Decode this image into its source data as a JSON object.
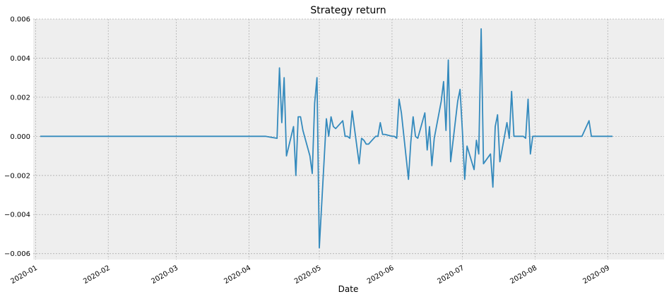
{
  "chart_data": {
    "type": "line",
    "title": "Strategy return",
    "xlabel": "Date",
    "ylabel": "",
    "grid": true,
    "xlim": [
      "2019-12-31",
      "2020-09-25"
    ],
    "ylim": [
      -0.0063,
      0.006
    ],
    "y_ticks": [
      -0.006,
      -0.004,
      -0.002,
      0.0,
      0.002,
      0.004,
      0.006
    ],
    "y_tick_labels": [
      "−0.006",
      "−0.004",
      "−0.002",
      "0.000",
      "0.002",
      "0.004",
      "0.006"
    ],
    "x_ticks": [
      "2020-01-01",
      "2020-02-01",
      "2020-03-01",
      "2020-04-01",
      "2020-05-01",
      "2020-06-01",
      "2020-07-01",
      "2020-08-01",
      "2020-09-01"
    ],
    "x_tick_labels": [
      "2020-01",
      "2020-02",
      "2020-03",
      "2020-04",
      "2020-05",
      "2020-06",
      "2020-07",
      "2020-08",
      "2020-09"
    ],
    "colors": {
      "line": "#348abd",
      "plot_bg": "#eeeeee",
      "grid": "#b0b0b0"
    },
    "series": [
      {
        "x": [
          "2020-01-03",
          "2020-04-08",
          "2020-04-13",
          "2020-04-14",
          "2020-04-15",
          "2020-04-16",
          "2020-04-17",
          "2020-04-20",
          "2020-04-21",
          "2020-04-22",
          "2020-04-23",
          "2020-04-24",
          "2020-04-27",
          "2020-04-28",
          "2020-04-29",
          "2020-04-30",
          "2020-05-01",
          "2020-05-04",
          "2020-05-05",
          "2020-05-06",
          "2020-05-07",
          "2020-05-08",
          "2020-05-11",
          "2020-05-12",
          "2020-05-13",
          "2020-05-14",
          "2020-05-15",
          "2020-05-18",
          "2020-05-19",
          "2020-05-20",
          "2020-05-21",
          "2020-05-22",
          "2020-05-25",
          "2020-05-26",
          "2020-05-27",
          "2020-05-28",
          "2020-05-29",
          "2020-06-01",
          "2020-06-02",
          "2020-06-03",
          "2020-06-04",
          "2020-06-05",
          "2020-06-08",
          "2020-06-09",
          "2020-06-10",
          "2020-06-11",
          "2020-06-12",
          "2020-06-15",
          "2020-06-16",
          "2020-06-17",
          "2020-06-18",
          "2020-06-19",
          "2020-06-22",
          "2020-06-23",
          "2020-06-24",
          "2020-06-25",
          "2020-06-26",
          "2020-06-29",
          "2020-06-30",
          "2020-07-01",
          "2020-07-02",
          "2020-07-03",
          "2020-07-06",
          "2020-07-07",
          "2020-07-08",
          "2020-07-09",
          "2020-07-10",
          "2020-07-13",
          "2020-07-14",
          "2020-07-15",
          "2020-07-16",
          "2020-07-17",
          "2020-07-20",
          "2020-07-21",
          "2020-07-22",
          "2020-07-23",
          "2020-07-24",
          "2020-07-27",
          "2020-07-28",
          "2020-07-29",
          "2020-07-30",
          "2020-07-31",
          "2020-08-03",
          "2020-08-21",
          "2020-08-24",
          "2020-08-25",
          "2020-08-26",
          "2020-08-27",
          "2020-08-28",
          "2020-08-31",
          "2020-09-01",
          "2020-09-02",
          "2020-09-03"
        ],
        "y": [
          0.0,
          0.0,
          -0.0001,
          0.0035,
          0.0007,
          0.003,
          -0.001,
          0.0005,
          -0.002,
          0.001,
          0.001,
          0.0003,
          -0.001,
          -0.0019,
          0.0017,
          0.003,
          -0.0057,
          0.0009,
          0.0,
          0.001,
          0.0005,
          0.0004,
          0.0008,
          0.0,
          0.0,
          -0.0001,
          0.0013,
          -0.0014,
          -0.0001,
          -0.0002,
          -0.0004,
          -0.0004,
          0.0,
          0.0,
          0.0007,
          0.0001,
          0.0001,
          0.0,
          0.0,
          -0.0001,
          0.0019,
          0.0012,
          -0.0022,
          -0.0003,
          0.001,
          0.0,
          -0.0001,
          0.0012,
          -0.0007,
          0.0005,
          -0.0015,
          -0.0001,
          0.0018,
          0.0028,
          0.0003,
          0.0039,
          -0.0013,
          0.0018,
          0.0024,
          0.0003,
          -0.0022,
          -0.0005,
          -0.0017,
          -0.0002,
          -0.0009,
          0.0055,
          -0.0014,
          -0.0009,
          -0.0026,
          0.0005,
          0.0011,
          -0.0013,
          0.0007,
          -0.0001,
          0.0023,
          0.0,
          0.0,
          0.0,
          -0.0001,
          0.0019,
          -0.0009,
          0.0,
          0.0,
          0.0,
          0.0008,
          0.0,
          0.0,
          0.0,
          0.0,
          0.0,
          0.0,
          0.0,
          0.0
        ]
      }
    ]
  }
}
